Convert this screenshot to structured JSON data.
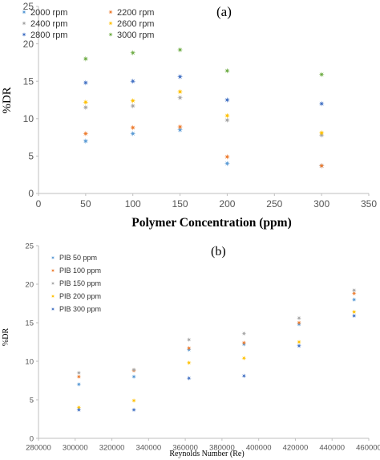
{
  "chart_data": [
    {
      "type": "scatter",
      "panel_label": "(a)",
      "xlabel": "Polymer Concentration (ppm)",
      "ylabel": "%DR",
      "xlim": [
        0,
        350
      ],
      "ylim": [
        0,
        25
      ],
      "xticks": [
        0,
        50,
        100,
        150,
        200,
        250,
        300,
        350
      ],
      "yticks": [
        0,
        5,
        10,
        15,
        20,
        25
      ],
      "grid": false,
      "legend_position": "top-left",
      "x": [
        50,
        100,
        150,
        200,
        300
      ],
      "series": [
        {
          "name": "2000 rpm",
          "color": "#5b9bd5",
          "marker": "star",
          "values": [
            7.0,
            8.0,
            8.5,
            4.0,
            3.7
          ]
        },
        {
          "name": "2200 rpm",
          "color": "#ed7d31",
          "marker": "star",
          "values": [
            8.0,
            8.8,
            8.9,
            4.9,
            3.7
          ]
        },
        {
          "name": "2400 rpm",
          "color": "#a5a5a5",
          "marker": "star",
          "values": [
            11.5,
            11.7,
            12.8,
            9.8,
            7.8
          ]
        },
        {
          "name": "2600 rpm",
          "color": "#ffc000",
          "marker": "star",
          "values": [
            12.2,
            12.4,
            13.6,
            10.4,
            8.1
          ]
        },
        {
          "name": "2800 rpm",
          "color": "#4472c4",
          "marker": "star",
          "values": [
            14.8,
            15.0,
            15.6,
            12.5,
            12.0
          ]
        },
        {
          "name": "3000 rpm",
          "color": "#70ad47",
          "marker": "star",
          "values": [
            18.0,
            18.8,
            19.2,
            16.4,
            15.9
          ]
        }
      ]
    },
    {
      "type": "scatter",
      "panel_label": "(b)",
      "xlabel": "Reynolds Number (Re)",
      "ylabel": "%DR",
      "xlim": [
        280000,
        460000
      ],
      "ylim": [
        0,
        25
      ],
      "xticks": [
        280000,
        300000,
        320000,
        340000,
        360000,
        380000,
        400000,
        420000,
        440000,
        460000
      ],
      "yticks": [
        0,
        5,
        10,
        15,
        20,
        25
      ],
      "grid": false,
      "legend_position": "top-left",
      "x": [
        302000,
        332000,
        362000,
        392000,
        422000,
        452000
      ],
      "series": [
        {
          "name": "PIB 50 ppm",
          "color": "#5b9bd5",
          "marker": "star",
          "values": [
            7.0,
            8.0,
            11.5,
            12.2,
            14.8,
            18.0
          ]
        },
        {
          "name": "PIB 100 ppm",
          "color": "#ed7d31",
          "marker": "star",
          "values": [
            8.0,
            8.8,
            11.7,
            12.4,
            15.0,
            18.8
          ]
        },
        {
          "name": "PIB 150 ppm",
          "color": "#a5a5a5",
          "marker": "star",
          "values": [
            8.5,
            8.9,
            12.8,
            13.6,
            15.6,
            19.2
          ]
        },
        {
          "name": "PIB 200 ppm",
          "color": "#ffc000",
          "marker": "star",
          "values": [
            4.0,
            4.9,
            9.8,
            10.4,
            12.5,
            16.4
          ]
        },
        {
          "name": "PIB 300 ppm",
          "color": "#4472c4",
          "marker": "star",
          "values": [
            3.7,
            3.7,
            7.8,
            8.1,
            12.0,
            15.9
          ]
        }
      ]
    }
  ]
}
